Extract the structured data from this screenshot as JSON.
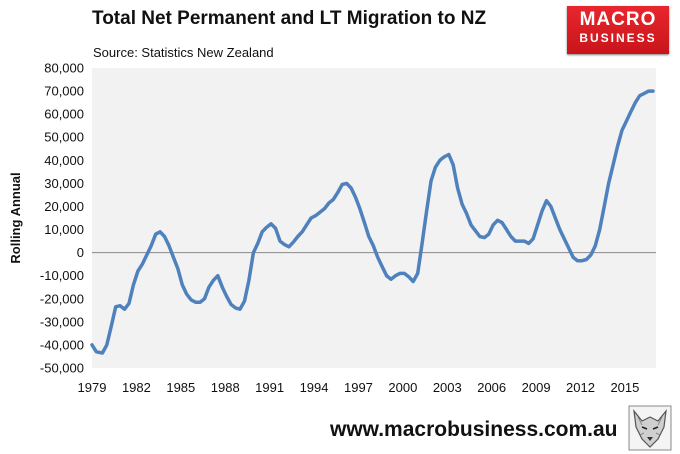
{
  "header": {
    "title": "Total Net Permanent and LT Migration to NZ",
    "source": "Source: Statistics New Zealand"
  },
  "logo": {
    "top": "MACRO",
    "bottom": "BUSINESS"
  },
  "footer": {
    "site": "www.macrobusiness.com.au"
  },
  "colors": {
    "line": "#4f81bd",
    "plot_bg": "#f2f2f2",
    "logo": "#d71920"
  },
  "chart_data": {
    "type": "line",
    "title": "Total Net Permanent and LT Migration to NZ",
    "xlabel": "",
    "ylabel": "Rolling Annual",
    "ylim": [
      -50000,
      80000
    ],
    "xlim": [
      1979,
      2017.1
    ],
    "yticks": [
      80000,
      70000,
      60000,
      50000,
      40000,
      30000,
      20000,
      10000,
      0,
      -10000,
      -20000,
      -30000,
      -40000,
      -50000
    ],
    "ytick_labels": [
      "80,000",
      "70,000",
      "60,000",
      "50,000",
      "40,000",
      "30,000",
      "20,000",
      "10,000",
      "0",
      "-10,000",
      "-20,000",
      "-30,000",
      "-40,000",
      "-50,000"
    ],
    "xticks": [
      1979,
      1982,
      1985,
      1988,
      1991,
      1994,
      1997,
      2000,
      2003,
      2006,
      2009,
      2012,
      2015
    ],
    "xtick_labels": [
      "1979",
      "1982",
      "1985",
      "1988",
      "1991",
      "1994",
      "1997",
      "2000",
      "2003",
      "2006",
      "2009",
      "2012",
      "2015"
    ],
    "grid": false,
    "x": [
      1979.0,
      1979.3,
      1979.7,
      1980.0,
      1980.3,
      1980.6,
      1980.9,
      1981.2,
      1981.5,
      1981.8,
      1982.1,
      1982.4,
      1982.7,
      1983.0,
      1983.3,
      1983.6,
      1983.9,
      1984.2,
      1984.5,
      1984.8,
      1985.1,
      1985.4,
      1985.7,
      1986.0,
      1986.3,
      1986.6,
      1986.9,
      1987.2,
      1987.5,
      1987.8,
      1988.1,
      1988.4,
      1988.7,
      1989.0,
      1989.3,
      1989.6,
      1989.9,
      1990.2,
      1990.5,
      1990.8,
      1991.1,
      1991.4,
      1991.7,
      1992.0,
      1992.3,
      1992.6,
      1992.9,
      1993.2,
      1993.5,
      1993.8,
      1994.1,
      1994.4,
      1994.7,
      1995.0,
      1995.3,
      1995.6,
      1995.9,
      1996.2,
      1996.5,
      1996.8,
      1997.1,
      1997.4,
      1997.7,
      1998.0,
      1998.3,
      1998.6,
      1998.9,
      1999.2,
      1999.5,
      1999.8,
      2000.1,
      2000.4,
      2000.7,
      2001.0,
      2001.3,
      2001.6,
      2001.9,
      2002.2,
      2002.5,
      2002.8,
      2003.1,
      2003.4,
      2003.7,
      2004.0,
      2004.3,
      2004.6,
      2004.9,
      2005.2,
      2005.5,
      2005.8,
      2006.1,
      2006.4,
      2006.7,
      2007.0,
      2007.3,
      2007.6,
      2007.9,
      2008.2,
      2008.5,
      2008.8,
      2009.1,
      2009.4,
      2009.7,
      2010.0,
      2010.3,
      2010.6,
      2010.9,
      2011.2,
      2011.5,
      2011.8,
      2012.1,
      2012.4,
      2012.7,
      2013.0,
      2013.3,
      2013.6,
      2013.9,
      2014.2,
      2014.5,
      2014.8,
      2015.1,
      2015.4,
      2015.7,
      2016.0,
      2016.3,
      2016.6,
      2016.9
    ],
    "series": [
      {
        "values": [
          -40000,
          -43000,
          -43500,
          -40000,
          -32000,
          -23500,
          -23000,
          -24500,
          -22000,
          -14000,
          -8000,
          -5000,
          -1000,
          3000,
          8000,
          9000,
          7000,
          3000,
          -2000,
          -7000,
          -14000,
          -18000,
          -20500,
          -21500,
          -21500,
          -20000,
          -15000,
          -12000,
          -10000,
          -15000,
          -19000,
          -22500,
          -24000,
          -24500,
          -21000,
          -12000,
          0,
          4000,
          9000,
          11000,
          12500,
          10500,
          5000,
          3500,
          2500,
          4500,
          7000,
          9000,
          12000,
          15000,
          16000,
          17500,
          19000,
          21500,
          23000,
          26000,
          29500,
          30000,
          28000,
          24000,
          19000,
          13000,
          7000,
          3000,
          -2000,
          -6000,
          -10000,
          -11500,
          -10000,
          -9000,
          -9000,
          -10500,
          -12500,
          -9000,
          4000,
          18000,
          31000,
          37000,
          40000,
          41500,
          42500,
          38000,
          28000,
          21000,
          17000,
          12000,
          9500,
          7000,
          6500,
          8000,
          12000,
          14000,
          13000,
          10000,
          7000,
          5000,
          5000,
          5000,
          4000,
          6000,
          12000,
          18000,
          22500,
          20000,
          15000,
          10000,
          6000,
          2000,
          -2000,
          -3500,
          -3500,
          -3000,
          -1000,
          3000,
          10000,
          20000,
          30000,
          38000,
          46000,
          53000,
          57000,
          61000,
          65000,
          68000,
          69000,
          70000,
          70000
        ]
      }
    ]
  }
}
